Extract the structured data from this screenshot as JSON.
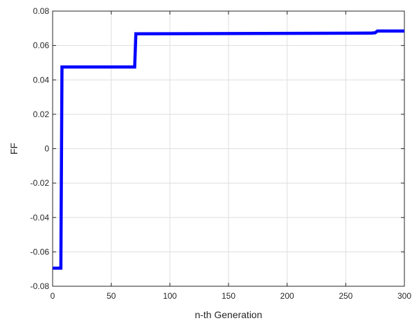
{
  "chart_data": {
    "type": "line",
    "title": "",
    "xlabel": "n-th Generation",
    "ylabel": "FF",
    "xlim": [
      0,
      300
    ],
    "ylim": [
      -0.08,
      0.08
    ],
    "xticks": [
      0,
      50,
      100,
      150,
      200,
      250,
      300
    ],
    "xtick_labels": [
      "0",
      "50",
      "100",
      "150",
      "200",
      "250",
      "300"
    ],
    "yticks": [
      -0.08,
      -0.06,
      -0.04,
      -0.02,
      0,
      0.02,
      0.04,
      0.06,
      0.08
    ],
    "ytick_labels": [
      "-0.08",
      "-0.06",
      "-0.04",
      "-0.02",
      "0",
      "0.02",
      "0.04",
      "0.06",
      "0.08"
    ],
    "grid": true,
    "series": [
      {
        "color": "#0000ff",
        "x": [
          0,
          7,
          8,
          70,
          71,
          270,
          272,
          275,
          277,
          300
        ],
        "y": [
          -0.0695,
          -0.0695,
          0.0475,
          0.0475,
          0.0668,
          0.0672,
          0.0672,
          0.0674,
          0.0684,
          0.0684
        ]
      }
    ]
  }
}
